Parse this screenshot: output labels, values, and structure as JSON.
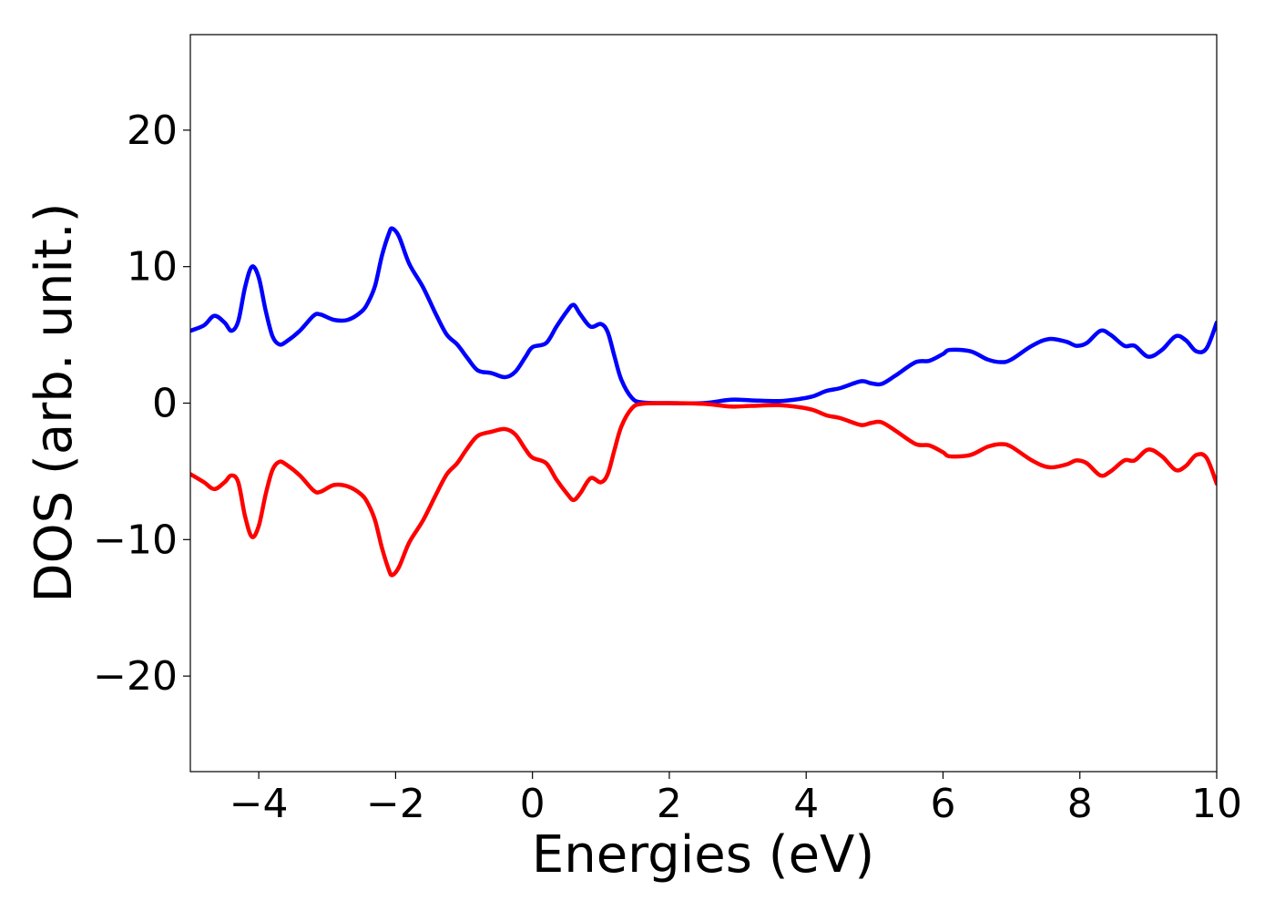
{
  "chart_data": {
    "type": "line",
    "title": "",
    "xlabel": "Energies (eV)",
    "ylabel": "DOS (arb. unit.)",
    "xlim": [
      -5,
      10
    ],
    "ylim": [
      -27,
      27
    ],
    "xticks": [
      -4,
      -2,
      0,
      2,
      4,
      6,
      8,
      10
    ],
    "xtick_labels": [
      "−4",
      "−2",
      "0",
      "2",
      "4",
      "6",
      "8",
      "10"
    ],
    "yticks": [
      -20,
      -10,
      0,
      10,
      20
    ],
    "ytick_labels": [
      "−20",
      "−10",
      "0",
      "10",
      "20"
    ],
    "grid": false,
    "legend": "none",
    "series": [
      {
        "color": "#0000ff",
        "points": [
          [
            -5.0,
            5.3
          ],
          [
            -4.8,
            5.7
          ],
          [
            -4.65,
            6.4
          ],
          [
            -4.5,
            5.9
          ],
          [
            -4.4,
            5.3
          ],
          [
            -4.3,
            6.0
          ],
          [
            -4.2,
            8.5
          ],
          [
            -4.1,
            10.0
          ],
          [
            -4.0,
            9.2
          ],
          [
            -3.9,
            6.8
          ],
          [
            -3.8,
            4.9
          ],
          [
            -3.7,
            4.3
          ],
          [
            -3.6,
            4.5
          ],
          [
            -3.4,
            5.3
          ],
          [
            -3.2,
            6.4
          ],
          [
            -3.1,
            6.5
          ],
          [
            -2.9,
            6.1
          ],
          [
            -2.7,
            6.1
          ],
          [
            -2.5,
            6.7
          ],
          [
            -2.4,
            7.4
          ],
          [
            -2.3,
            8.6
          ],
          [
            -2.2,
            10.8
          ],
          [
            -2.1,
            12.4
          ],
          [
            -2.05,
            12.8
          ],
          [
            -1.95,
            12.2
          ],
          [
            -1.8,
            10.2
          ],
          [
            -1.6,
            8.5
          ],
          [
            -1.4,
            6.4
          ],
          [
            -1.25,
            5.0
          ],
          [
            -1.1,
            4.3
          ],
          [
            -0.95,
            3.3
          ],
          [
            -0.8,
            2.4
          ],
          [
            -0.6,
            2.2
          ],
          [
            -0.4,
            1.9
          ],
          [
            -0.25,
            2.3
          ],
          [
            -0.1,
            3.4
          ],
          [
            0.0,
            4.1
          ],
          [
            0.2,
            4.4
          ],
          [
            0.35,
            5.6
          ],
          [
            0.5,
            6.7
          ],
          [
            0.6,
            7.2
          ],
          [
            0.7,
            6.5
          ],
          [
            0.85,
            5.6
          ],
          [
            1.0,
            5.8
          ],
          [
            1.1,
            5.2
          ],
          [
            1.2,
            3.4
          ],
          [
            1.3,
            1.7
          ],
          [
            1.45,
            0.4
          ],
          [
            1.6,
            0.05
          ],
          [
            2.0,
            0.0
          ],
          [
            2.5,
            0.0
          ],
          [
            2.9,
            0.25
          ],
          [
            3.2,
            0.2
          ],
          [
            3.6,
            0.15
          ],
          [
            3.9,
            0.3
          ],
          [
            4.1,
            0.5
          ],
          [
            4.3,
            0.9
          ],
          [
            4.5,
            1.1
          ],
          [
            4.8,
            1.6
          ],
          [
            4.95,
            1.45
          ],
          [
            5.1,
            1.4
          ],
          [
            5.3,
            2.0
          ],
          [
            5.6,
            3.0
          ],
          [
            5.8,
            3.1
          ],
          [
            6.0,
            3.6
          ],
          [
            6.1,
            3.9
          ],
          [
            6.4,
            3.8
          ],
          [
            6.65,
            3.2
          ],
          [
            6.85,
            3.0
          ],
          [
            7.0,
            3.2
          ],
          [
            7.3,
            4.2
          ],
          [
            7.55,
            4.7
          ],
          [
            7.8,
            4.5
          ],
          [
            7.95,
            4.2
          ],
          [
            8.1,
            4.4
          ],
          [
            8.3,
            5.3
          ],
          [
            8.45,
            5.0
          ],
          [
            8.65,
            4.2
          ],
          [
            8.8,
            4.2
          ],
          [
            9.0,
            3.4
          ],
          [
            9.2,
            3.9
          ],
          [
            9.4,
            4.9
          ],
          [
            9.55,
            4.6
          ],
          [
            9.7,
            3.8
          ],
          [
            9.85,
            4.0
          ],
          [
            10.0,
            5.9
          ]
        ]
      },
      {
        "color": "#ff0000",
        "points": [
          [
            -5.0,
            -5.2
          ],
          [
            -4.8,
            -5.8
          ],
          [
            -4.65,
            -6.3
          ],
          [
            -4.5,
            -5.8
          ],
          [
            -4.4,
            -5.3
          ],
          [
            -4.3,
            -5.8
          ],
          [
            -4.2,
            -8.3
          ],
          [
            -4.1,
            -9.8
          ],
          [
            -4.0,
            -9.0
          ],
          [
            -3.9,
            -6.7
          ],
          [
            -3.8,
            -4.9
          ],
          [
            -3.7,
            -4.3
          ],
          [
            -3.6,
            -4.5
          ],
          [
            -3.4,
            -5.3
          ],
          [
            -3.2,
            -6.4
          ],
          [
            -3.1,
            -6.5
          ],
          [
            -2.9,
            -6.0
          ],
          [
            -2.7,
            -6.1
          ],
          [
            -2.5,
            -6.7
          ],
          [
            -2.4,
            -7.4
          ],
          [
            -2.3,
            -8.6
          ],
          [
            -2.2,
            -10.6
          ],
          [
            -2.1,
            -12.2
          ],
          [
            -2.05,
            -12.6
          ],
          [
            -1.95,
            -12.0
          ],
          [
            -1.8,
            -10.2
          ],
          [
            -1.6,
            -8.6
          ],
          [
            -1.4,
            -6.6
          ],
          [
            -1.25,
            -5.2
          ],
          [
            -1.1,
            -4.4
          ],
          [
            -0.95,
            -3.3
          ],
          [
            -0.8,
            -2.4
          ],
          [
            -0.6,
            -2.1
          ],
          [
            -0.4,
            -1.9
          ],
          [
            -0.25,
            -2.3
          ],
          [
            -0.1,
            -3.4
          ],
          [
            0.0,
            -4.0
          ],
          [
            0.2,
            -4.4
          ],
          [
            0.35,
            -5.6
          ],
          [
            0.5,
            -6.6
          ],
          [
            0.6,
            -7.1
          ],
          [
            0.7,
            -6.6
          ],
          [
            0.85,
            -5.5
          ],
          [
            1.0,
            -5.8
          ],
          [
            1.1,
            -5.2
          ],
          [
            1.2,
            -3.4
          ],
          [
            1.3,
            -1.7
          ],
          [
            1.45,
            -0.4
          ],
          [
            1.6,
            -0.05
          ],
          [
            2.0,
            0.0
          ],
          [
            2.5,
            -0.05
          ],
          [
            2.9,
            -0.25
          ],
          [
            3.2,
            -0.2
          ],
          [
            3.6,
            -0.15
          ],
          [
            3.9,
            -0.3
          ],
          [
            4.1,
            -0.5
          ],
          [
            4.3,
            -0.9
          ],
          [
            4.5,
            -1.1
          ],
          [
            4.8,
            -1.6
          ],
          [
            4.95,
            -1.45
          ],
          [
            5.1,
            -1.4
          ],
          [
            5.3,
            -2.0
          ],
          [
            5.6,
            -3.0
          ],
          [
            5.8,
            -3.1
          ],
          [
            6.0,
            -3.6
          ],
          [
            6.1,
            -3.9
          ],
          [
            6.4,
            -3.8
          ],
          [
            6.65,
            -3.2
          ],
          [
            6.85,
            -3.0
          ],
          [
            7.0,
            -3.2
          ],
          [
            7.3,
            -4.2
          ],
          [
            7.55,
            -4.7
          ],
          [
            7.8,
            -4.5
          ],
          [
            7.95,
            -4.2
          ],
          [
            8.1,
            -4.4
          ],
          [
            8.3,
            -5.3
          ],
          [
            8.45,
            -5.0
          ],
          [
            8.65,
            -4.2
          ],
          [
            8.8,
            -4.2
          ],
          [
            9.0,
            -3.4
          ],
          [
            9.2,
            -3.9
          ],
          [
            9.4,
            -4.9
          ],
          [
            9.55,
            -4.6
          ],
          [
            9.7,
            -3.8
          ],
          [
            9.85,
            -4.0
          ],
          [
            10.0,
            -5.9
          ]
        ]
      }
    ]
  }
}
